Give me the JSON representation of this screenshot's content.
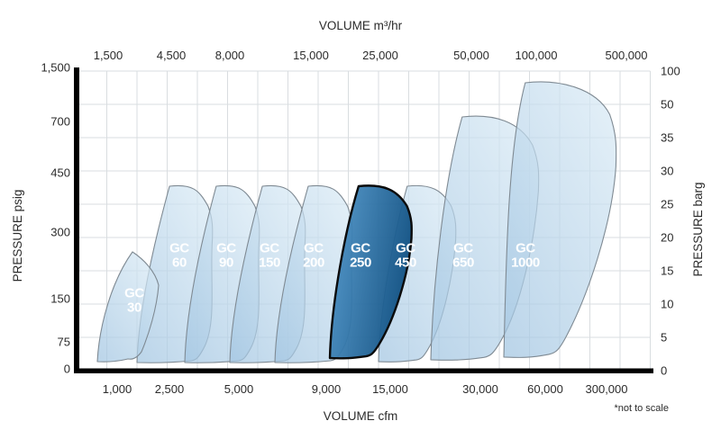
{
  "colors": {
    "grid": "#d9dde0",
    "axis": "#000000",
    "envelope_fill_light": "#d9eaf5",
    "envelope_fill_deep": "#a3c6e2",
    "envelope_stroke": "#7f8a93",
    "highlight_fill_left": "#4e94c8",
    "highlight_fill_right": "#0c4c7e",
    "highlight_stroke": "#0b0b0b",
    "label_text": "#ffffff",
    "tick_text": "#2b2b2b"
  },
  "chart_data": {
    "type": "area",
    "subtype": "compressor-operating-envelope-map",
    "note": "*not to scale",
    "grid": "on",
    "axes": {
      "top": {
        "label": "VOLUME m³/hr",
        "ticks": [
          "1,500",
          "4,500",
          "8,000",
          "15,000",
          "25,000",
          "50,000",
          "100,000",
          "500,000"
        ]
      },
      "bottom": {
        "label": "VOLUME cfm",
        "ticks": [
          "1,000",
          "2,500",
          "5,000",
          "9,000",
          "15,000",
          "30,000",
          "60,000",
          "300,000"
        ]
      },
      "left": {
        "label": "PRESSURE psig",
        "ticks": [
          "1,500",
          "700",
          "450",
          "300",
          "150",
          "75",
          "0"
        ],
        "range": [
          0,
          1500
        ]
      },
      "right": {
        "label": "PRESSURE barg",
        "ticks": [
          "100",
          "50",
          "35",
          "30",
          "25",
          "20",
          "15",
          "10",
          "5",
          "0"
        ],
        "range": [
          0,
          100
        ]
      }
    },
    "series": [
      {
        "model": "GC",
        "size": "30",
        "name": "GC 30",
        "highlighted": false,
        "approx_flow_range_cfm": [
          800,
          2300
        ],
        "approx_max_pressure_psig": 260
      },
      {
        "model": "GC",
        "size": "60",
        "name": "GC 60",
        "highlighted": false,
        "approx_flow_range_cfm": [
          1500,
          4000
        ],
        "approx_max_pressure_psig": 410
      },
      {
        "model": "GC",
        "size": "90",
        "name": "GC 90",
        "highlighted": false,
        "approx_flow_range_cfm": [
          3000,
          6000
        ],
        "approx_max_pressure_psig": 410
      },
      {
        "model": "GC",
        "size": "150",
        "name": "GC 150",
        "highlighted": false,
        "approx_flow_range_cfm": [
          4700,
          8000
        ],
        "approx_max_pressure_psig": 410
      },
      {
        "model": "GC",
        "size": "200",
        "name": "GC 200",
        "highlighted": false,
        "approx_flow_range_cfm": [
          6600,
          11000
        ],
        "approx_max_pressure_psig": 410
      },
      {
        "model": "GC",
        "size": "250",
        "name": "GC 250",
        "highlighted": true,
        "approx_flow_range_cfm": [
          9000,
          18000
        ],
        "approx_max_pressure_psig": 410
      },
      {
        "model": "GC",
        "size": "450",
        "name": "GC 450",
        "highlighted": false,
        "approx_flow_range_cfm": [
          14000,
          26000
        ],
        "approx_max_pressure_psig": 410
      },
      {
        "model": "GC",
        "size": "650",
        "name": "GC 650",
        "highlighted": false,
        "approx_flow_range_cfm": [
          22000,
          57000
        ],
        "approx_max_pressure_psig": 700
      },
      {
        "model": "GC",
        "size": "1000",
        "name": "GC 1000",
        "highlighted": false,
        "approx_flow_range_cfm": [
          41000,
          300000
        ],
        "approx_max_pressure_psig": 1200
      }
    ]
  }
}
